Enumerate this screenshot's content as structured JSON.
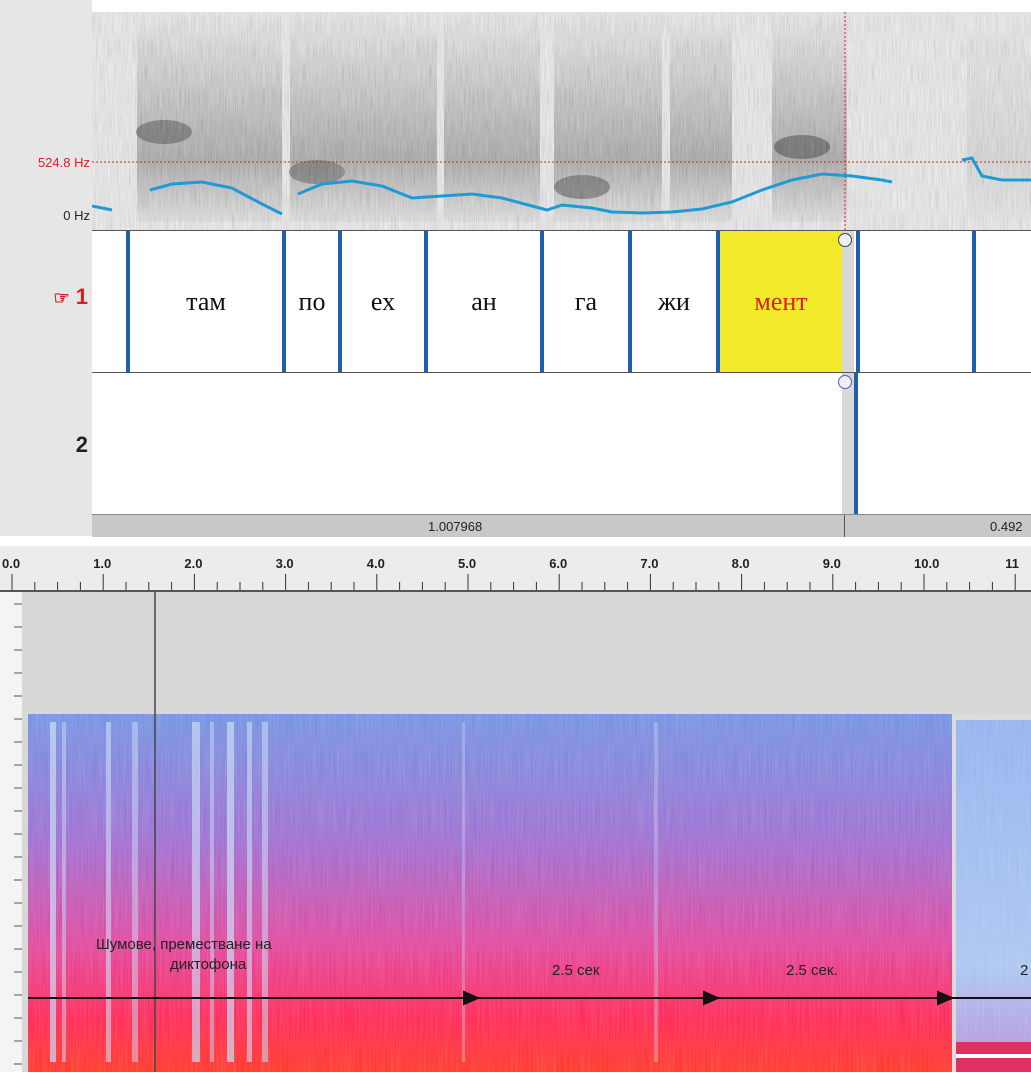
{
  "praat": {
    "freq_label": "524.8 Hz",
    "zero_label": "0 Hz",
    "tier1": {
      "label": "1",
      "pointer_icon": "hand-pointer-icon"
    },
    "tier2": {
      "label": "2"
    },
    "syllables": [
      "там",
      "по",
      "ех",
      "ан",
      "га",
      "жи",
      "мент"
    ],
    "selected_index": 6,
    "durations": [
      "1.007968",
      "0.492"
    ]
  },
  "audacity": {
    "ruler_ticks": [
      "0.0",
      "1.0",
      "2.0",
      "3.0",
      "4.0",
      "5.0",
      "6.0",
      "7.0",
      "8.0",
      "9.0",
      "10.0",
      "11"
    ],
    "annotation_noise": "Шумове, преместване на",
    "annotation_noise_line2": "диктофона",
    "segment_labels": [
      "2.5 сек",
      "2.5 сек.",
      "2"
    ]
  },
  "colors": {
    "boundary": "#1f5fae",
    "pitch": "#1e9bd6",
    "selection": "#f2ea2a",
    "accent_red": "#d62020"
  }
}
